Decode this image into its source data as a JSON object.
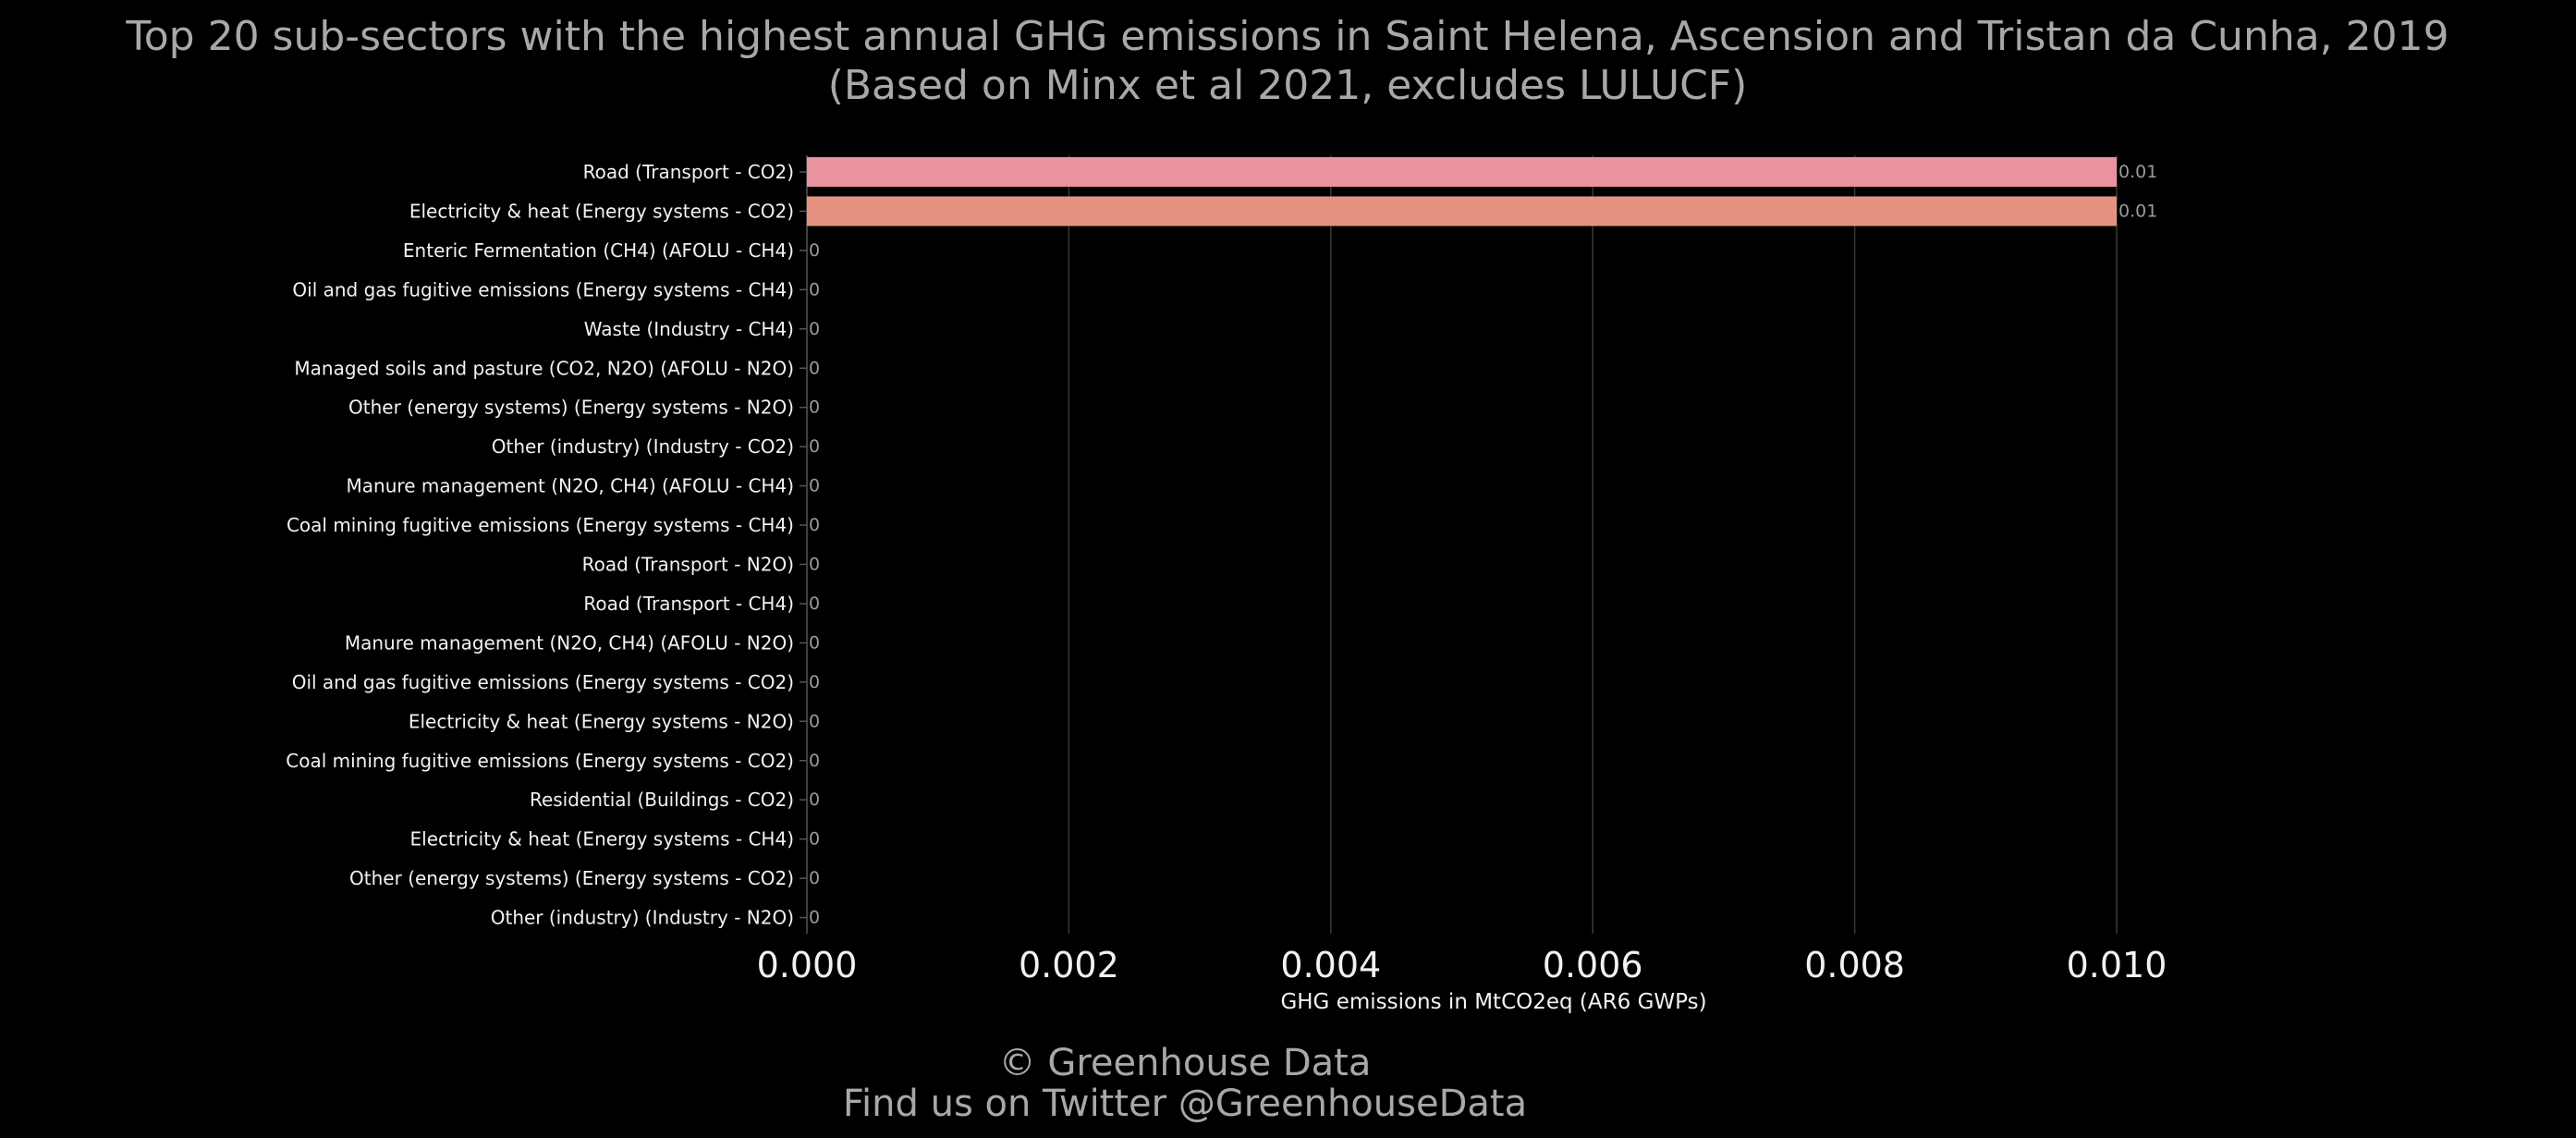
{
  "title_lines": [
    "Top 20 sub-sectors with the highest annual GHG emissions in Saint Helena, Ascension and Tristan da Cunha, 2019",
    "(Based on Minx et al 2021, excludes LULUCF)"
  ],
  "footer_lines": [
    "© Greenhouse Data",
    "Find us on Twitter @GreenhouseData"
  ],
  "chart_data": {
    "type": "bar",
    "orientation": "horizontal",
    "title": "Top 20 sub-sectors with the highest annual GHG emissions in Saint Helena, Ascension and Tristan da Cunha, 2019 (Based on Minx et al 2021, excludes LULUCF)",
    "xlabel": "GHG emissions in MtCO2eq (AR6 GWPs)",
    "ylabel": "",
    "xlim": [
      0,
      0.01
    ],
    "x_ticks": [
      "0.000",
      "0.002",
      "0.004",
      "0.006",
      "0.008",
      "0.010"
    ],
    "x_tick_values": [
      0,
      0.002,
      0.004,
      0.006,
      0.008,
      0.01
    ],
    "grid": "vertical",
    "categories": [
      "Road (Transport - CO2)",
      "Electricity & heat (Energy systems - CO2)",
      "Enteric Fermentation (CH4) (AFOLU - CH4)",
      "Oil and gas fugitive emissions (Energy systems - CH4)",
      "Waste (Industry - CH4)",
      "Managed soils and pasture (CO2, N2O) (AFOLU - N2O)",
      "Other (energy systems) (Energy systems - N2O)",
      "Other (industry) (Industry - CO2)",
      "Manure management (N2O, CH4) (AFOLU - CH4)",
      "Coal mining fugitive emissions (Energy systems - CH4)",
      "Road (Transport - N2O)",
      "Road (Transport - CH4)",
      "Manure management (N2O, CH4) (AFOLU - N2O)",
      "Oil and gas fugitive emissions (Energy systems - CO2)",
      "Electricity & heat (Energy systems - N2O)",
      "Coal mining fugitive emissions (Energy systems - CO2)",
      "Residential (Buildings - CO2)",
      "Electricity & heat (Energy systems - CH4)",
      "Other (energy systems) (Energy systems - CO2)",
      "Other (industry) (Industry - N2O)"
    ],
    "values": [
      0.01,
      0.01,
      0,
      0,
      0,
      0,
      0,
      0,
      0,
      0,
      0,
      0,
      0,
      0,
      0,
      0,
      0,
      0,
      0,
      0
    ],
    "value_labels": [
      "0.01",
      "0.01",
      "0",
      "0",
      "0",
      "0",
      "0",
      "0",
      "0",
      "0",
      "0",
      "0",
      "0",
      "0",
      "0",
      "0",
      "0",
      "0",
      "0",
      "0"
    ],
    "bar_colors": [
      "#e8939f",
      "#e69280"
    ]
  }
}
